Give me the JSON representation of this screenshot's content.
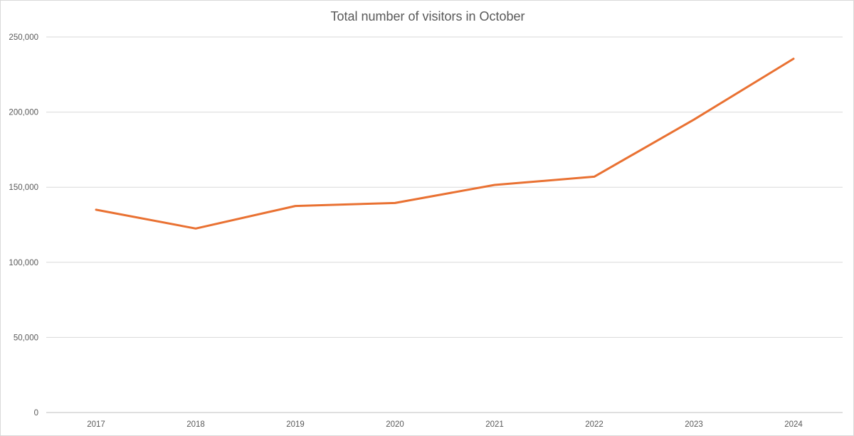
{
  "chart_data": {
    "type": "line",
    "title": "Total number of visitors in October",
    "xlabel": "",
    "ylabel": "",
    "categories": [
      "2017",
      "2018",
      "2019",
      "2020",
      "2021",
      "2022",
      "2023",
      "2024"
    ],
    "series": [
      {
        "values": [
          135000,
          122500,
          137500,
          139500,
          151500,
          157000,
          195000,
          235500
        ],
        "color": "#E97132"
      }
    ],
    "ylim": [
      0,
      250000
    ],
    "yticks": [
      0,
      50000,
      100000,
      150000,
      200000,
      250000
    ],
    "ytick_labels": [
      "0",
      "50,000",
      "100,000",
      "150,000",
      "200,000",
      "250,000"
    ],
    "grid": true,
    "gridline_color": "#d9d9d9",
    "legend": "none"
  }
}
